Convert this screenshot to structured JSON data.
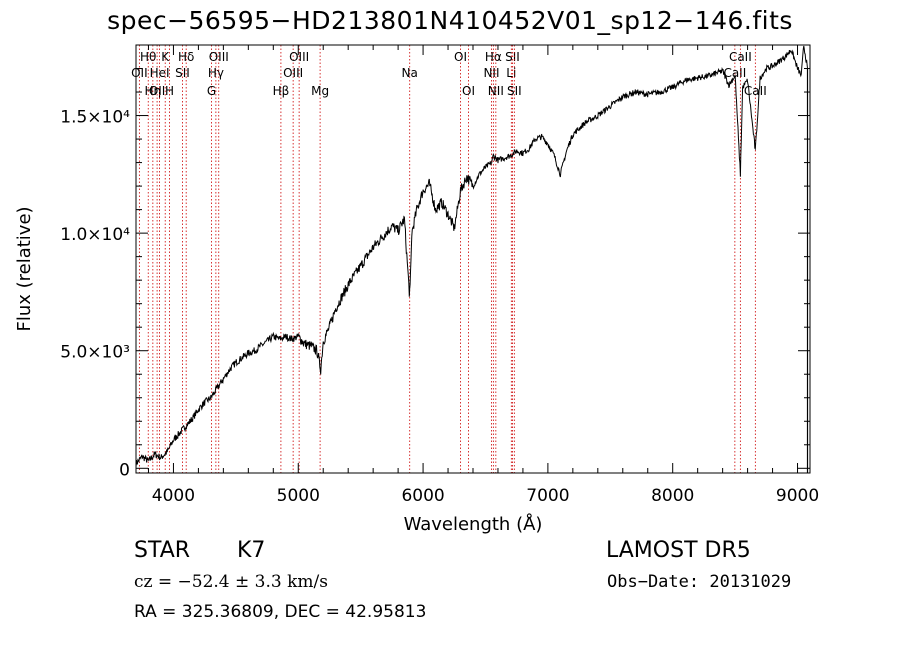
{
  "title": "spec−56595−HD213801N410452V01_sp12−146.fits",
  "info": {
    "object_class": "STAR",
    "subclass": "K7",
    "survey": "LAMOST DR5",
    "cz": "cz = −52.4 ± 3.3 km/s",
    "obs_date": "Obs−Date: 20131029",
    "radec": "RA = 325.36809, DEC =  42.95813"
  },
  "colors": {
    "spectrum": "#000000",
    "line_markers": "#cc0000",
    "axes": "#000000"
  },
  "chart_data": {
    "type": "line",
    "title": "spec−56595−HD213801N410452V01_sp12−146.fits",
    "xlabel": "Wavelength (Å)",
    "ylabel": "Flux (relative)",
    "xlim": [
      3700,
      9100
    ],
    "ylim": [
      -200,
      18000
    ],
    "x_ticks": [
      {
        "value": 4000,
        "label": "4000"
      },
      {
        "value": 5000,
        "label": "5000"
      },
      {
        "value": 6000,
        "label": "6000"
      },
      {
        "value": 7000,
        "label": "7000"
      },
      {
        "value": 8000,
        "label": "8000"
      },
      {
        "value": 9000,
        "label": "9000"
      }
    ],
    "y_ticks": [
      {
        "value": 0,
        "label": "0"
      },
      {
        "value": 5000,
        "label": "5.0×10³"
      },
      {
        "value": 10000,
        "label": "1.0×10⁴"
      },
      {
        "value": 15000,
        "label": "1.5×10⁴"
      }
    ],
    "grid": false,
    "series": [
      {
        "x": [
          3700,
          3750,
          3800,
          3850,
          3900,
          3950,
          4000,
          4050,
          4100,
          4150,
          4200,
          4250,
          4300,
          4350,
          4400,
          4450,
          4500,
          4550,
          4600,
          4650,
          4700,
          4750,
          4800,
          4850,
          4900,
          4950,
          5000,
          5050,
          5100,
          5150,
          5180,
          5200,
          5250,
          5300,
          5350,
          5400,
          5450,
          5500,
          5550,
          5600,
          5650,
          5700,
          5750,
          5800,
          5850,
          5890,
          5896,
          5910,
          5950,
          6000,
          6050,
          6100,
          6150,
          6200,
          6250,
          6300,
          6350,
          6400,
          6450,
          6500,
          6550,
          6563,
          6600,
          6650,
          6700,
          6750,
          6800,
          6850,
          6900,
          6950,
          7000,
          7050,
          7100,
          7150,
          7200,
          7300,
          7400,
          7500,
          7600,
          7700,
          7800,
          7900,
          8000,
          8100,
          8200,
          8300,
          8400,
          8450,
          8500,
          8542,
          8560,
          8600,
          8662,
          8700,
          8750,
          8800,
          8850,
          8900,
          8950,
          9000,
          9030,
          9050,
          9080
        ],
        "y": [
          200,
          500,
          300,
          600,
          450,
          700,
          1200,
          1500,
          1800,
          2100,
          2500,
          2800,
          3000,
          3400,
          3800,
          4200,
          4500,
          4700,
          4900,
          5000,
          5200,
          5400,
          5600,
          5500,
          5600,
          5500,
          5600,
          5300,
          5200,
          5000,
          4200,
          5400,
          6000,
          6800,
          7300,
          7800,
          8200,
          8600,
          9000,
          9400,
          9700,
          10000,
          10300,
          10100,
          10600,
          7500,
          7600,
          10000,
          11000,
          11800,
          12100,
          11000,
          11300,
          10800,
          10200,
          11800,
          12400,
          12000,
          12500,
          12800,
          13000,
          13300,
          13100,
          13200,
          13300,
          13500,
          13400,
          13600,
          14000,
          14100,
          13800,
          13300,
          12500,
          13500,
          14200,
          14700,
          15000,
          15400,
          15800,
          16000,
          15900,
          16000,
          16200,
          16500,
          16600,
          16700,
          16900,
          16300,
          16700,
          12500,
          16200,
          16500,
          13500,
          16600,
          17000,
          17100,
          17300,
          17500,
          17800,
          17000,
          16700,
          18000,
          17000
        ]
      }
    ],
    "lines": [
      {
        "w": 3727,
        "label": "OII",
        "row": 1
      },
      {
        "w": 3798,
        "label": "Hθ",
        "row": 0
      },
      {
        "w": 3835,
        "label": "Hη",
        "row": 2
      },
      {
        "w": 3869,
        "label": "OII",
        "row": 2
      },
      {
        "w": 3889,
        "label": "HeI",
        "row": 1
      },
      {
        "w": 3934,
        "label": "K",
        "row": 0
      },
      {
        "w": 3969,
        "label": "H",
        "row": 2
      },
      {
        "w": 4072,
        "label": "SII",
        "row": 1
      },
      {
        "w": 4102,
        "label": "Hδ",
        "row": 0
      },
      {
        "w": 4305,
        "label": "G",
        "row": 2
      },
      {
        "w": 4340,
        "label": "Hγ",
        "row": 1
      },
      {
        "w": 4363,
        "label": "OIII",
        "row": 0
      },
      {
        "w": 4861,
        "label": "Hβ",
        "row": 2
      },
      {
        "w": 4959,
        "label": "OIII",
        "row": 1
      },
      {
        "w": 5007,
        "label": "OIII",
        "row": 0
      },
      {
        "w": 5175,
        "label": "Mg",
        "row": 2
      },
      {
        "w": 5893,
        "label": "Na",
        "row": 1
      },
      {
        "w": 6300,
        "label": "OI",
        "row": 0
      },
      {
        "w": 6364,
        "label": "OI",
        "row": 2
      },
      {
        "w": 6548,
        "label": "NII",
        "row": 1
      },
      {
        "w": 6563,
        "label": "Hα",
        "row": 0
      },
      {
        "w": 6583,
        "label": "NII",
        "row": 2
      },
      {
        "w": 6707,
        "label": "Li",
        "row": 1
      },
      {
        "w": 6716,
        "label": "SII",
        "row": 0
      },
      {
        "w": 6731,
        "label": "SII",
        "row": 2
      },
      {
        "w": 8498,
        "label": "CaII",
        "row": 1
      },
      {
        "w": 8542,
        "label": "CaII",
        "row": 0
      },
      {
        "w": 8662,
        "label": "CaII",
        "row": 2
      }
    ]
  }
}
